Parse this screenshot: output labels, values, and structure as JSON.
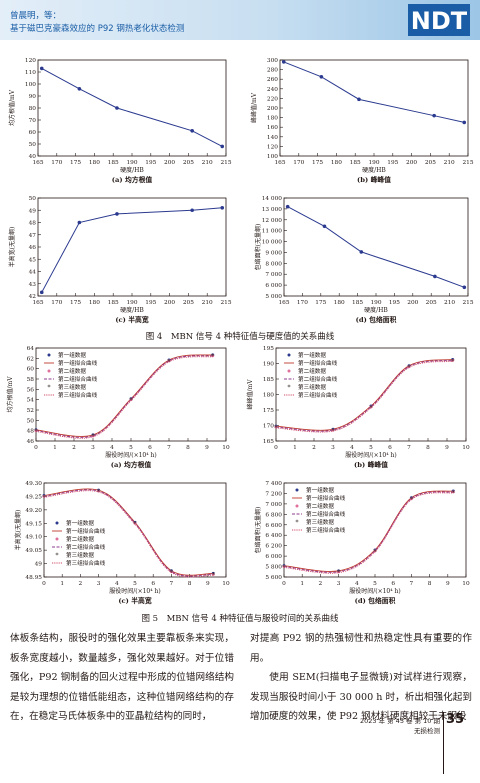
{
  "header": {
    "authors": "曾晨明，等：",
    "title": "基于磁巴克豪森效应的 P92 钢热老化状态检测",
    "logo_text": "NDT",
    "logo_color": "#1a5da6"
  },
  "fig4": {
    "caption": "图 4　MBN 信号 4 种特征值与硬度值的关系曲线"
  },
  "fig5": {
    "caption": "图 5　MBN 信号 4 种特征值与服役时间的关系曲线"
  },
  "chart_data": [
    {
      "id": "f4a",
      "type": "line",
      "label": "(a) 均方根值",
      "xlabel": "硬度/HB",
      "ylabel": "均方根值/mV",
      "xlim": [
        165,
        215
      ],
      "ylim": [
        40,
        120
      ],
      "xticks": [
        165,
        170,
        175,
        180,
        185,
        190,
        195,
        200,
        205,
        210,
        215
      ],
      "yticks": [
        40,
        50,
        60,
        70,
        80,
        90,
        100,
        110,
        120
      ],
      "x": [
        166,
        176,
        186,
        206,
        214
      ],
      "y": [
        113,
        96,
        80,
        61,
        48
      ],
      "color": "#2b3a8f"
    },
    {
      "id": "f4b",
      "type": "line",
      "label": "(b) 峰峰值",
      "xlabel": "硬度/HB",
      "ylabel": "峰峰值/mV",
      "xlim": [
        165,
        215
      ],
      "ylim": [
        100,
        300
      ],
      "xticks": [
        165,
        170,
        175,
        180,
        185,
        190,
        195,
        200,
        205,
        210,
        215
      ],
      "yticks": [
        100,
        120,
        140,
        160,
        180,
        200,
        220,
        240,
        260,
        280,
        300
      ],
      "x": [
        166,
        176,
        186,
        206,
        214
      ],
      "y": [
        296,
        265,
        218,
        184,
        170
      ],
      "color": "#2b3a8f"
    },
    {
      "id": "f4c",
      "type": "line",
      "label": "(c) 半高宽",
      "xlabel": "硬度/HB",
      "ylabel": "半高宽(无量纲)",
      "xlim": [
        165,
        215
      ],
      "ylim": [
        42,
        50
      ],
      "xticks": [
        165,
        170,
        175,
        180,
        185,
        190,
        195,
        200,
        205,
        210,
        215
      ],
      "yticks": [
        42,
        43,
        44,
        45,
        46,
        47,
        48,
        49,
        50
      ],
      "x": [
        166,
        176,
        186,
        206,
        214
      ],
      "y": [
        42.3,
        48.0,
        48.7,
        49.0,
        49.2
      ],
      "color": "#2b3a8f"
    },
    {
      "id": "f4d",
      "type": "line",
      "label": "(d) 包络面积",
      "xlabel": "硬度/HB",
      "ylabel": "包络面积(无量纲)",
      "xlim": [
        165,
        215
      ],
      "ylim": [
        5000,
        14000
      ],
      "xticks": [
        165,
        170,
        175,
        180,
        185,
        190,
        195,
        200,
        205,
        210,
        215
      ],
      "yticks": [
        5000,
        6000,
        7000,
        8000,
        9000,
        10000,
        11000,
        12000,
        13000,
        14000
      ],
      "x": [
        166,
        176,
        186,
        206,
        214
      ],
      "y": [
        13200,
        11400,
        9050,
        6800,
        5800
      ],
      "color": "#2b3a8f"
    },
    {
      "id": "f5a",
      "type": "line",
      "label": "(a) 均方根值",
      "xlabel": "服役时间/(×10⁴ h)",
      "ylabel": "均方根值/mV",
      "xlim": [
        0,
        10
      ],
      "ylim": [
        46,
        64
      ],
      "xticks": [
        0,
        1,
        2,
        3,
        4,
        5,
        6,
        7,
        8,
        9,
        10
      ],
      "yticks": [
        46,
        48,
        50,
        52,
        54,
        56,
        58,
        60,
        62,
        64
      ],
      "x": [
        0,
        3,
        5,
        7,
        9.3
      ],
      "y": [
        48,
        47,
        54,
        61.5,
        62.5
      ],
      "legend_position": "top-left",
      "series": [
        {
          "name": "第一组数据"
        },
        {
          "name": "第一组拟合曲线"
        },
        {
          "name": "第二组数据"
        },
        {
          "name": "第二组拟合曲线"
        },
        {
          "name": "第三组数据"
        },
        {
          "name": "第三组拟合曲线"
        }
      ]
    },
    {
      "id": "f5b",
      "type": "line",
      "label": "(b) 峰峰值",
      "xlabel": "服役时间/(×10⁴ h)",
      "ylabel": "峰峰值/mV",
      "xlim": [
        0,
        10
      ],
      "ylim": [
        165,
        195
      ],
      "xticks": [
        0,
        1,
        2,
        3,
        4,
        5,
        6,
        7,
        8,
        9,
        10
      ],
      "yticks": [
        165,
        170,
        175,
        180,
        185,
        190,
        195
      ],
      "x": [
        0,
        3,
        5,
        7,
        9.3
      ],
      "y": [
        169.5,
        168.5,
        176,
        189,
        191
      ],
      "legend_position": "top-left",
      "series": [
        {
          "name": "第一组数据"
        },
        {
          "name": "第一组拟合曲线"
        },
        {
          "name": "第二组数据"
        },
        {
          "name": "第二组拟合曲线"
        },
        {
          "name": "第三组数据"
        },
        {
          "name": "第三组拟合曲线"
        }
      ]
    },
    {
      "id": "f5c",
      "type": "line",
      "label": "(c) 半高宽",
      "xlabel": "服役时间/(×10⁴ h)",
      "ylabel": "半高宽(无量纲)",
      "xlim": [
        0,
        10
      ],
      "ylim": [
        48.95,
        49.3
      ],
      "xticks": [
        0,
        1,
        2,
        3,
        4,
        5,
        6,
        7,
        8,
        9,
        10
      ],
      "yticks": [
        48.95,
        49.0,
        49.05,
        49.1,
        49.15,
        49.2,
        49.25,
        49.3
      ],
      "x": [
        0,
        3,
        5,
        7,
        9.3
      ],
      "y": [
        49.25,
        49.27,
        49.15,
        48.97,
        48.96
      ],
      "legend_position": "bottom-left",
      "series": [
        {
          "name": "第一组数据"
        },
        {
          "name": "第一组拟合曲线"
        },
        {
          "name": "第二组数据"
        },
        {
          "name": "第二组拟合曲线"
        },
        {
          "name": "第三组数据"
        },
        {
          "name": "第三组拟合曲线"
        }
      ]
    },
    {
      "id": "f5d",
      "type": "line",
      "label": "(d) 包络面积",
      "xlabel": "服役时间/(×10⁴ h)",
      "ylabel": "包络面积(无量纲)",
      "xlim": [
        0,
        10
      ],
      "ylim": [
        5600,
        7400
      ],
      "xticks": [
        0,
        1,
        2,
        3,
        4,
        5,
        6,
        7,
        8,
        9,
        10
      ],
      "yticks": [
        5600,
        5800,
        6000,
        6200,
        6400,
        6600,
        6800,
        7000,
        7200,
        7400
      ],
      "x": [
        0,
        3,
        5,
        7,
        9.3
      ],
      "y": [
        5800,
        5700,
        6100,
        7100,
        7230
      ],
      "legend_position": "top-left",
      "series": [
        {
          "name": "第一组数据"
        },
        {
          "name": "第一组拟合曲线"
        },
        {
          "name": "第二组数据"
        },
        {
          "name": "第二组拟合曲线"
        },
        {
          "name": "第三组数据"
        },
        {
          "name": "第三组拟合曲线"
        }
      ]
    }
  ],
  "body": {
    "left": "体板条结构，服役时的强化效果主要靠板条来实现，板条宽度越小，数量越多，强化效果越好。对于位错强化，P92 钢制备的回火过程中形成的位错网络结构是较为理想的位错低能组态，这种位错网络结构的存在，在稳定马氏体板条中的亚晶粒结构的同时，",
    "right1": "对提高 P92 钢的热强韧性和热稳定性具有重要的作用。",
    "right2": "使用 SEM(扫描电子显微镜)对试样进行观察，发现当服役时间小于 30 000 h 时，析出相强化起到增加硬度的效果，使 P92 钢材料硬度相较于未服役"
  },
  "footer": {
    "page": "35",
    "issue": "2023 年 第 45 卷 第 10 期",
    "journal": "无损检测"
  }
}
